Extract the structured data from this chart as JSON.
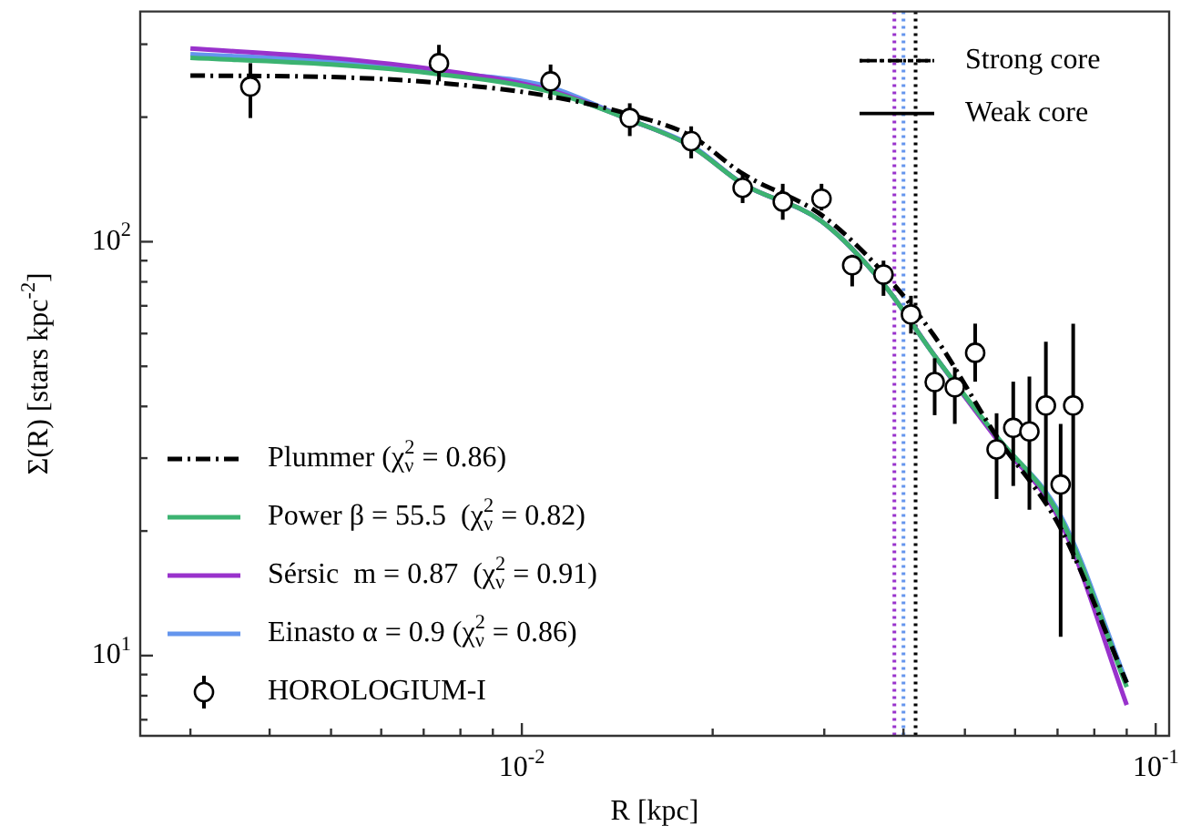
{
  "chart_data": {
    "type": "line",
    "xlabel": "R [kpc]",
    "ylabel": "Σ(R) [stars kpc$^{-2}$]",
    "log": "xy",
    "grid": false,
    "legend": "bottom left",
    "xlim": [
      0.0025,
      0.105
    ],
    "ylim": [
      6.4,
      360
    ],
    "xticks": [
      {
        "value": 0.003,
        "label": null
      },
      {
        "value": 0.004,
        "label": null
      },
      {
        "value": 0.005,
        "label": null
      },
      {
        "value": 0.006,
        "label": null
      },
      {
        "value": 0.007,
        "label": null
      },
      {
        "value": 0.008,
        "label": null
      },
      {
        "value": 0.009,
        "label": null
      },
      {
        "value": 0.01,
        "label": "10$^{-2}$"
      },
      {
        "value": 0.02,
        "label": null
      },
      {
        "value": 0.03,
        "label": null
      },
      {
        "value": 0.04,
        "label": null
      },
      {
        "value": 0.05,
        "label": null
      },
      {
        "value": 0.06,
        "label": null
      },
      {
        "value": 0.07,
        "label": null
      },
      {
        "value": 0.08,
        "label": null
      },
      {
        "value": 0.09,
        "label": null
      },
      {
        "value": 0.1,
        "label": "10$^{-1}$"
      }
    ],
    "yticks": [
      {
        "value": 7,
        "label": null
      },
      {
        "value": 8,
        "label": null
      },
      {
        "value": 9,
        "label": null
      },
      {
        "value": 10,
        "label": "10$^{1}$"
      },
      {
        "value": 20,
        "label": null
      },
      {
        "value": 30,
        "label": null
      },
      {
        "value": 40,
        "label": null
      },
      {
        "value": 50,
        "label": null
      },
      {
        "value": 60,
        "label": null
      },
      {
        "value": 70,
        "label": null
      },
      {
        "value": 80,
        "label": null
      },
      {
        "value": 90,
        "label": null
      },
      {
        "value": 100,
        "label": "10$^{2}$"
      },
      {
        "value": 200,
        "label": null
      },
      {
        "value": 300,
        "label": null
      }
    ],
    "series": [
      {
        "name": "Plummer (χ$_{ν}$$^{2}$ = 0.86)",
        "color": "#000000",
        "line_style": "dashed",
        "x": [
          0.003,
          0.005,
          0.0074,
          0.011,
          0.0148,
          0.0185,
          0.0223,
          0.0297,
          0.0372,
          0.0448,
          0.056,
          0.0708,
          0.09
        ],
        "values": [
          252,
          250,
          242,
          225,
          203,
          180,
          146,
          116,
          84,
          59,
          34,
          20.3,
          8.6
        ]
      },
      {
        "name": "Power β = 55.5  (χ$_{ν}$$^{2}$ = 0.82)",
        "color": "#3cb371",
        "line_style": "solid",
        "x": [
          0.003,
          0.005,
          0.0074,
          0.011,
          0.0148,
          0.0185,
          0.0223,
          0.0297,
          0.0372,
          0.0448,
          0.056,
          0.0708,
          0.09
        ],
        "values": [
          278,
          268,
          254,
          231,
          197,
          170,
          138,
          112,
          79,
          53,
          34,
          21.5,
          8.4
        ]
      },
      {
        "name": "Sérsic  m = 0.87  (χ$_{ν}$$^{2}$ = 0.91)",
        "color": "#9932cc",
        "line_style": "solid",
        "x": [
          0.003,
          0.005,
          0.0074,
          0.011,
          0.0148,
          0.0185,
          0.0223,
          0.0297,
          0.0372,
          0.0448,
          0.056,
          0.0708,
          0.09
        ],
        "values": [
          293,
          278,
          260,
          233,
          197,
          170,
          138,
          112,
          79,
          53,
          33.5,
          21,
          7.6
        ]
      },
      {
        "name": "Einasto α = 0.9 (χ$_{ν}$$^{2}$ = 0.86)",
        "color": "#6495ed",
        "line_style": "solid",
        "x": [
          0.003,
          0.005,
          0.0074,
          0.011,
          0.0148,
          0.0185,
          0.0223,
          0.0297,
          0.0372,
          0.0448,
          0.056,
          0.0708,
          0.09
        ],
        "values": [
          284,
          273,
          257,
          237,
          197,
          171,
          138,
          112,
          79,
          53,
          33.8,
          21.8,
          8.6
        ]
      },
      {
        "name": "HOROLOGIUM-I",
        "type": "scatter",
        "color": "#000000",
        "marker": "circle",
        "x": [
          0.00373,
          0.0074,
          0.0111,
          0.0148,
          0.0185,
          0.0223,
          0.0258,
          0.0297,
          0.0332,
          0.0372,
          0.0411,
          0.0448,
          0.0482,
          0.0519,
          0.0561,
          0.0596,
          0.0632,
          0.0671,
          0.0708,
          0.0741
        ],
        "values": [
          237,
          270,
          244,
          199,
          175,
          135,
          125,
          127,
          87.7,
          83.3,
          66.7,
          45.8,
          44.5,
          53.9,
          31.5,
          35.5,
          34.8,
          40.2,
          25.9,
          40.2
        ],
        "errors": [
          [
            199,
            270
          ],
          [
            244,
            299
          ],
          [
            220,
            268
          ],
          [
            180,
            216
          ],
          [
            159,
            190
          ],
          [
            124,
            145
          ],
          [
            113,
            138
          ],
          [
            119,
            138
          ],
          [
            78,
            93
          ],
          [
            74,
            90
          ],
          [
            60,
            74
          ],
          [
            38.1,
            52.3
          ],
          [
            36.3,
            49.7
          ],
          [
            45.9,
            63.4
          ],
          [
            23.9,
            38.5
          ],
          [
            25.7,
            45.9
          ],
          [
            22.5,
            47.2
          ],
          [
            23.2,
            57.3
          ],
          [
            11.1,
            36.3
          ],
          [
            17.1,
            63.4
          ]
        ]
      }
    ],
    "ref_lines": [
      {
        "axis": "x",
        "value": 0.0387,
        "color": "#9932cc",
        "line_style": "dotted"
      },
      {
        "axis": "x",
        "value": 0.04,
        "color": "#6495ed",
        "line_style": "dotted"
      },
      {
        "axis": "x",
        "value": 0.0418,
        "color": "#000000",
        "line_style": "dotted"
      }
    ],
    "annotations": [
      "Strong core",
      "Weak core"
    ]
  }
}
